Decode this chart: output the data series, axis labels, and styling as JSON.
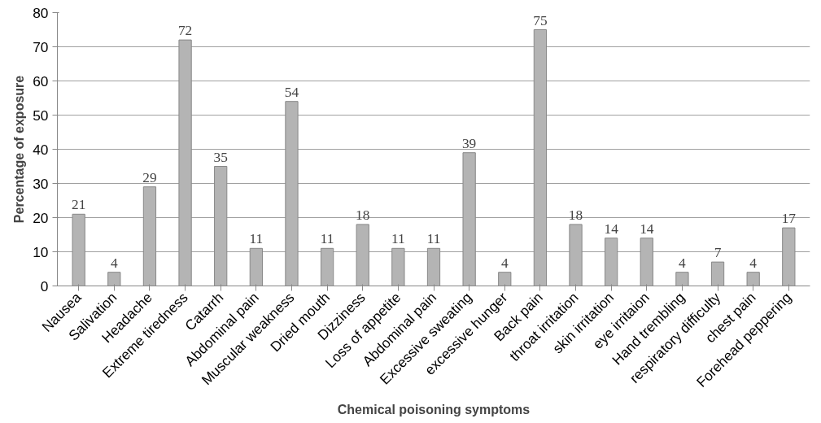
{
  "chart_data": {
    "type": "bar",
    "xlabel": "Chemical poisoning symptoms",
    "ylabel": "Percentage of exposure",
    "categories": [
      "Nausea",
      "Salivation",
      "Headache",
      "Extreme tiredness",
      "Catarrh",
      "Abdominal pain",
      "Muscular weakness",
      "Dried mouth",
      "Dizziness",
      "Loss of appetite",
      "Abdominal pain",
      "Excessive sweating",
      "excessive hunger",
      "Back pain",
      "throat irritation",
      "skin irritation",
      "eye irritaion",
      "Hand trembling",
      "respiratory difficulty",
      "chest pain",
      "Forehead peppering"
    ],
    "values": [
      21,
      4,
      29,
      72,
      35,
      11,
      54,
      11,
      18,
      11,
      11,
      39,
      4,
      75,
      18,
      14,
      14,
      4,
      7,
      4,
      17
    ],
    "color": "#b4b4b4",
    "ylim": [
      0,
      80
    ],
    "yticks": [
      0,
      10,
      20,
      30,
      40,
      50,
      60,
      70,
      80
    ],
    "grid": "y",
    "data_labels": true
  }
}
